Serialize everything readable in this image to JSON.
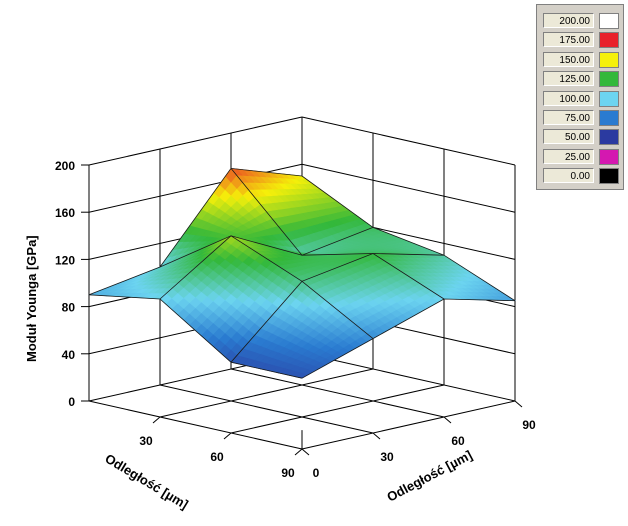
{
  "chart_data": {
    "type": "surface3d",
    "title": "",
    "zlabel": "Moduł Younga [GPa]",
    "xlabel": "Odległość [µm]",
    "ylabel": "Odległość [µm]",
    "z_ticks": [
      "0",
      "40",
      "80",
      "120",
      "160",
      "200"
    ],
    "x_ticks": [
      "30",
      "60",
      "90"
    ],
    "y_ticks": [
      "0",
      "30",
      "60",
      "90"
    ],
    "zlim": [
      0,
      200
    ],
    "x_range": [
      0,
      90
    ],
    "y_range": [
      0,
      90
    ],
    "x": [
      0,
      30,
      60,
      90
    ],
    "y": [
      0,
      30,
      60,
      90
    ],
    "z": [
      [
        90,
        100,
        170,
        150
      ],
      [
        100,
        140,
        110,
        120
      ],
      [
        60,
        115,
        125,
        110
      ],
      [
        60,
        80,
        100,
        85
      ]
    ]
  },
  "legend": {
    "entries": [
      {
        "value": "200.00",
        "color": "#ffffff"
      },
      {
        "value": "175.00",
        "color": "#e8202a"
      },
      {
        "value": "150.00",
        "color": "#f5f00a"
      },
      {
        "value": "125.00",
        "color": "#33b83a"
      },
      {
        "value": "100.00",
        "color": "#6cd4f0"
      },
      {
        "value": "75.00",
        "color": "#2a7bd0"
      },
      {
        "value": "50.00",
        "color": "#2b3aa0"
      },
      {
        "value": "25.00",
        "color": "#d418b0"
      },
      {
        "value": "0.00",
        "color": "#000000"
      }
    ]
  }
}
